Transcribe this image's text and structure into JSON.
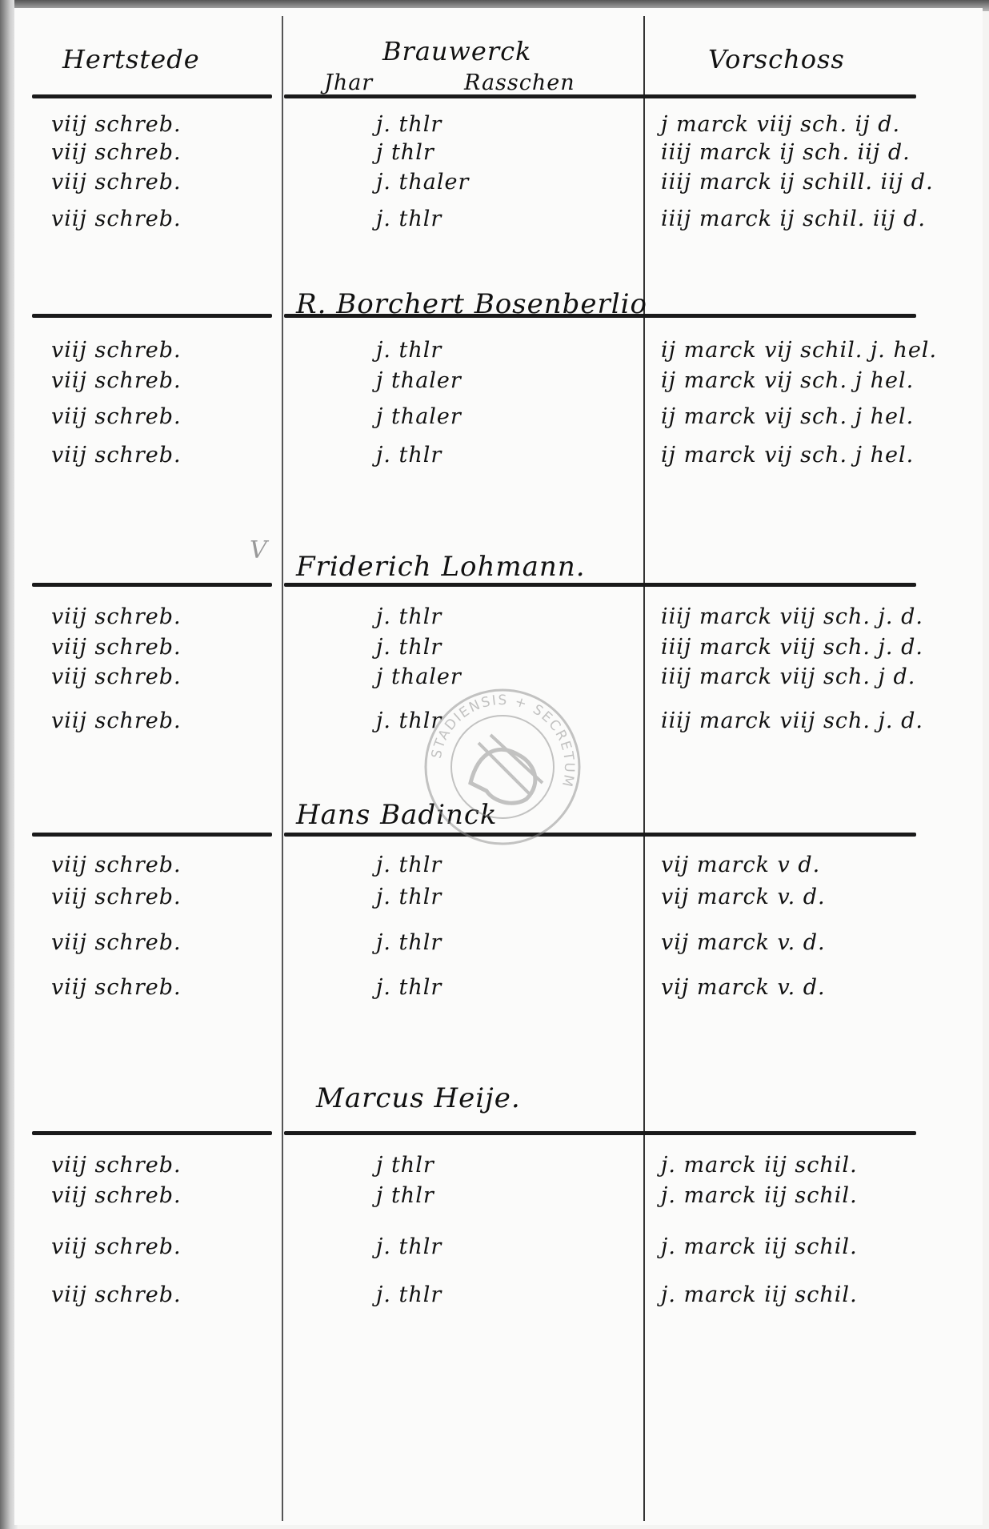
{
  "headers": {
    "col1": "Hertstede",
    "col2_top": "Brauwerck",
    "col2_left": "Jhar",
    "col2_right": "Rasschen",
    "col3": "Vorschoss"
  },
  "sections": [
    {
      "name": "",
      "rows": [
        [
          "viij schreb.",
          "j. thlr",
          "j marck viij sch. ij d."
        ],
        [
          "viij schreb.",
          "j thlr",
          "iiij marck ij sch. iij d."
        ],
        [
          "viij schreb.",
          "j. thaler",
          "iiij marck ij schill. iij d."
        ],
        [
          "viij schreb.",
          "j. thlr",
          "iiij marck ij schil. iij d."
        ]
      ]
    },
    {
      "name": "R. Borchert Bosenberlio",
      "rows": [
        [
          "viij schreb.",
          "j. thlr",
          "ij marck vij schil. j. hel."
        ],
        [
          "viij schreb.",
          "j thaler",
          "ij marck vij sch. j hel."
        ],
        [
          "viij schreb.",
          "j thaler",
          "ij marck vij sch. j hel."
        ],
        [
          "viij schreb.",
          "j. thlr",
          "ij marck vij sch. j hel."
        ]
      ]
    },
    {
      "name": "Friderich Lohmann.",
      "rows": [
        [
          "viij schreb.",
          "j. thlr",
          "iiij marck viij sch. j. d."
        ],
        [
          "viij schreb.",
          "j. thlr",
          "iiij marck viij sch. j. d."
        ],
        [
          "viij schreb.",
          "j thaler",
          "iiij marck viij sch. j d."
        ],
        [
          "viij schreb.",
          "j. thlr",
          "iiij marck viij sch. j. d."
        ]
      ]
    },
    {
      "name": "Hans Badinck",
      "rows": [
        [
          "viij schreb.",
          "j. thlr",
          "vij marck v d."
        ],
        [
          "viij schreb.",
          "j. thlr",
          "vij marck v. d."
        ],
        [
          "viij schreb.",
          "j. thlr",
          "vij marck v. d."
        ],
        [
          "viij schreb.",
          "j. thlr",
          "vij marck v. d."
        ]
      ]
    },
    {
      "name": "Marcus Heije.",
      "rows": [
        [
          "viij schreb.",
          "j thlr",
          "j. marck iij schil."
        ],
        [
          "viij schreb.",
          "j thlr",
          "j. marck iij schil."
        ],
        [
          "viij schreb.",
          "j. thlr",
          "j. marck iij schil."
        ],
        [
          "viij schreb.",
          "j. thlr",
          "j. marck iij schil."
        ]
      ]
    }
  ],
  "seal": {
    "legend": "STADIENSIS + SECRETUM"
  },
  "margin_mark": "V",
  "colors": {
    "ink": "#111111",
    "paper": "#fbfbfa",
    "seal": "#8a8a8a"
  }
}
